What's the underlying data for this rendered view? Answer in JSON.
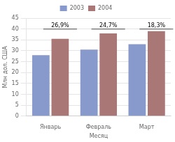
{
  "chart_data": {
    "type": "bar",
    "x_label": "Месяц",
    "y_label": "Млн дол. США",
    "categories": [
      "Январь",
      "Февраль",
      "Март"
    ],
    "series": [
      {
        "name": "2003",
        "color": "#8899cc",
        "values": [
          28.0,
          30.5,
          33.0
        ]
      },
      {
        "name": "2004",
        "color": "#aa7777",
        "values": [
          35.5,
          38.0,
          39.0
        ]
      }
    ],
    "annotations": [
      "26,9%",
      "24,7%",
      "18,3%"
    ],
    "ylim": [
      0,
      45
    ],
    "yticks": [
      0,
      5,
      10,
      15,
      20,
      25,
      30,
      35,
      40,
      45
    ],
    "grid": true,
    "legend": "top"
  }
}
